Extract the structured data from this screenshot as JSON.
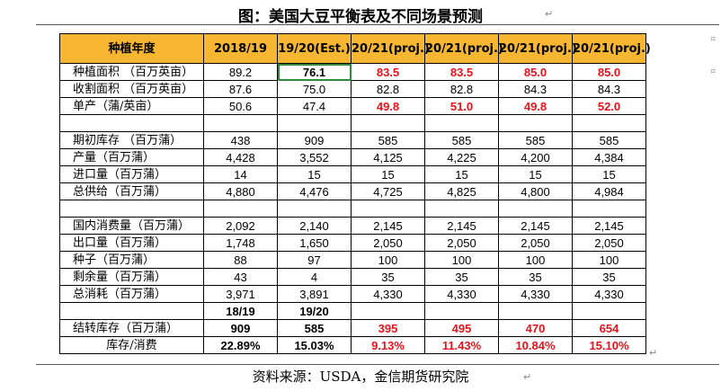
{
  "figure_title": "图：美国大豆平衡表及不同场景预测",
  "source": "资料来源：USDA，金信期货研究院",
  "header": [
    "种植年度",
    "2018/19",
    "19/20(Est.)",
    "20/21(proj.)",
    "20/21(proj.)",
    "20/21(proj.)",
    "20/21(proj.)"
  ],
  "rows": {
    "planted": {
      "label": "种植面积  （百万英亩）",
      "values": [
        "89.2",
        "76.1",
        "83.5",
        "83.5",
        "85.0",
        "85.0"
      ]
    },
    "harvested": {
      "label": "收割面积  （百万英亩）",
      "values": [
        "87.6",
        "75.0",
        "82.8",
        "82.8",
        "84.3",
        "84.3"
      ]
    },
    "yield": {
      "label": "单产（蒲/英亩）",
      "values": [
        "50.6",
        "47.4",
        "49.8",
        "51.0",
        "49.8",
        "52.0"
      ]
    },
    "beginning": {
      "label": "期初库存  （百万蒲）",
      "values": [
        "438",
        "909",
        "585",
        "585",
        "585",
        "585"
      ]
    },
    "production": {
      "label": "产量（百万蒲）",
      "values": [
        "4,428",
        "3,552",
        "4,125",
        "4,225",
        "4,200",
        "4,384"
      ]
    },
    "imports": {
      "label": "进口量（百万蒲）",
      "values": [
        "14",
        "15",
        "15",
        "15",
        "15",
        "15"
      ]
    },
    "supply": {
      "label": "总供给（百万蒲）",
      "values": [
        "4,880",
        "4,476",
        "4,725",
        "4,825",
        "4,800",
        "4,984"
      ]
    },
    "domestic": {
      "label": "国内消费量（百万蒲）",
      "values": [
        "2,092",
        "2,140",
        "2,145",
        "2,145",
        "2,145",
        "2,145"
      ]
    },
    "exports": {
      "label": "出口量（百万蒲）",
      "values": [
        "1,748",
        "1,650",
        "2,050",
        "2,050",
        "2,050",
        "2,050"
      ]
    },
    "seed": {
      "label": "种子（百万蒲）",
      "values": [
        "88",
        "97",
        "100",
        "100",
        "100",
        "100"
      ]
    },
    "residual": {
      "label": "剩余量（百万蒲）",
      "values": [
        "43",
        "4",
        "35",
        "35",
        "35",
        "35"
      ]
    },
    "use": {
      "label": "总消耗（百万蒲）",
      "values": [
        "3,971",
        "3,891",
        "4,330",
        "4,330",
        "4,330",
        "4,330"
      ]
    },
    "subheader": {
      "values": [
        "18/19",
        "19/20"
      ]
    },
    "ending": {
      "label": "结转库存（百万蒲）",
      "values": [
        "909",
        "585",
        "395",
        "495",
        "470",
        "654"
      ]
    },
    "stocks_use": {
      "label": "库存/消费",
      "values": [
        "22.89%",
        "15.03%",
        "9.13%",
        "11.43%",
        "10.84%",
        "15.10%"
      ]
    }
  }
}
